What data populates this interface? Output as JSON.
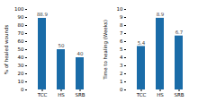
{
  "chart_data": [
    {
      "type": "bar",
      "categories": [
        "TCC",
        "HS",
        "SRB"
      ],
      "values": [
        88.9,
        50,
        40
      ],
      "ylabel": "% of healed wounds",
      "ylim": [
        0,
        100
      ],
      "yticks": [
        0,
        10,
        20,
        30,
        40,
        50,
        60,
        70,
        80,
        90,
        100
      ],
      "color": "#1a6ca8",
      "data_labels": true
    },
    {
      "type": "bar",
      "categories": [
        "TCC",
        "HS",
        "SRB"
      ],
      "values": [
        5.4,
        8.9,
        6.7
      ],
      "ylabel": "Time to healing (Weeks)",
      "ylim": [
        0,
        10
      ],
      "yticks": [
        0,
        1,
        2,
        3,
        4,
        5,
        6,
        7,
        8,
        9,
        10
      ],
      "color": "#1a6ca8",
      "data_labels": true
    }
  ]
}
